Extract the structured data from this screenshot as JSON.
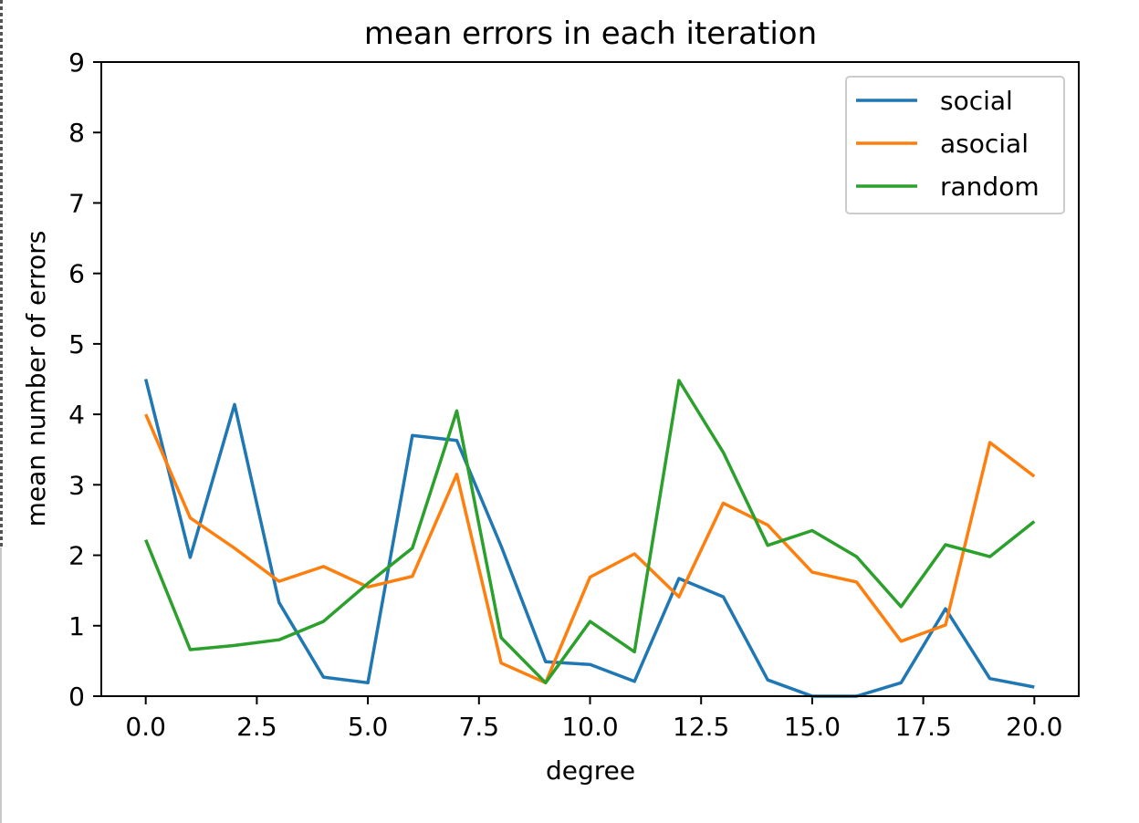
{
  "chart_data": {
    "type": "line",
    "title": "mean errors in each iteration",
    "xlabel": "degree",
    "ylabel": "mean number of errors",
    "xlim": [
      -1,
      21
    ],
    "ylim": [
      0,
      9
    ],
    "xticks": [
      0.0,
      2.5,
      5.0,
      7.5,
      10.0,
      12.5,
      15.0,
      17.5,
      20.0
    ],
    "xtick_labels": [
      "0.0",
      "2.5",
      "5.0",
      "7.5",
      "10.0",
      "12.5",
      "15.0",
      "17.5",
      "20.0"
    ],
    "yticks": [
      0,
      1,
      2,
      3,
      4,
      5,
      6,
      7,
      8,
      9
    ],
    "ytick_labels": [
      "0",
      "1",
      "2",
      "3",
      "4",
      "5",
      "6",
      "7",
      "8",
      "9"
    ],
    "grid": false,
    "legend_position": "top-right",
    "x": [
      0,
      1,
      2,
      3,
      4,
      5,
      6,
      7,
      8,
      9,
      10,
      11,
      12,
      13,
      14,
      15,
      16,
      17,
      18,
      19,
      20
    ],
    "series": [
      {
        "name": "social",
        "color": "#1f77b4",
        "values": [
          4.5,
          1.97,
          4.14,
          1.33,
          0.27,
          0.19,
          3.7,
          3.63,
          2.13,
          0.49,
          0.45,
          0.21,
          1.67,
          1.41,
          0.23,
          0.0,
          0.0,
          0.19,
          1.24,
          0.25,
          0.13
        ]
      },
      {
        "name": "asocial",
        "color": "#ff7f0e",
        "values": [
          4.0,
          2.53,
          2.1,
          1.63,
          1.84,
          1.55,
          1.7,
          3.15,
          0.47,
          0.19,
          1.69,
          2.02,
          1.41,
          2.74,
          2.43,
          1.76,
          1.62,
          0.78,
          1.01,
          3.6,
          3.12
        ]
      },
      {
        "name": "random",
        "color": "#2ca02c",
        "values": [
          2.22,
          0.66,
          0.72,
          0.8,
          1.06,
          1.6,
          2.1,
          4.05,
          0.83,
          0.19,
          1.06,
          0.63,
          4.48,
          3.46,
          2.14,
          2.35,
          1.98,
          1.27,
          2.15,
          1.98,
          2.48
        ]
      }
    ]
  }
}
